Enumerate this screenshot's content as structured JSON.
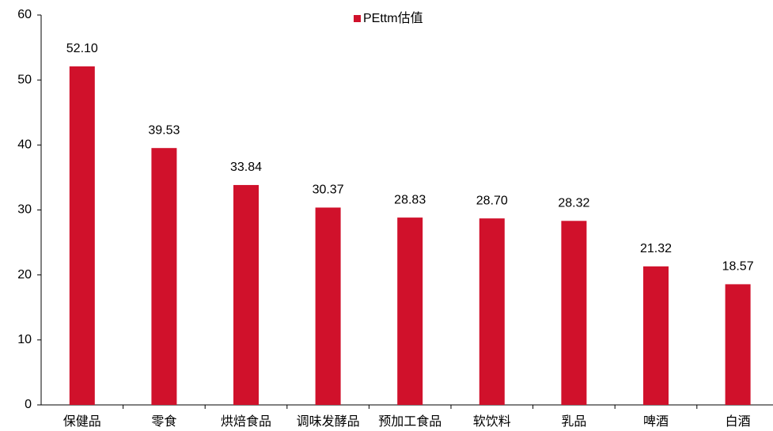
{
  "chart_data": {
    "type": "bar",
    "categories": [
      "保健品",
      "零食",
      "烘焙食品",
      "调味发酵品",
      "预加工食品",
      "软饮料",
      "乳品",
      "啤酒",
      "白酒"
    ],
    "series": [
      {
        "name": "PEttm估值",
        "color": "#d0112b",
        "values": [
          52.1,
          39.53,
          33.84,
          30.37,
          28.83,
          28.7,
          28.32,
          21.32,
          18.57
        ],
        "value_labels": [
          "52.10",
          "39.53",
          "33.84",
          "30.37",
          "28.83",
          "28.70",
          "28.32",
          "21.32",
          "18.57"
        ]
      }
    ],
    "ylim": [
      0,
      60
    ],
    "yticks": [
      0,
      10,
      20,
      30,
      40,
      50,
      60
    ],
    "grid": false,
    "legend": "top"
  }
}
